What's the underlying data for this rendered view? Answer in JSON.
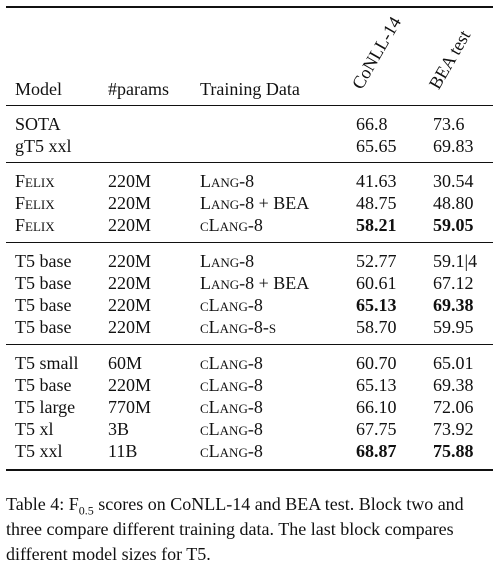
{
  "table": {
    "columns": {
      "model": "Model",
      "params": "#params",
      "training_data": "Training Data",
      "conll": "CoNLL-14",
      "bea": "BEA test"
    },
    "blocks": [
      [
        {
          "model": "SOTA",
          "params": "",
          "data": "",
          "conll": "66.8",
          "bea": "73.6"
        },
        {
          "model": "gT5 xxl",
          "params": "",
          "data": "",
          "conll": "65.65",
          "bea": "69.83"
        }
      ],
      [
        {
          "model": "Felix",
          "params": "220M",
          "data": "Lang-8",
          "conll": "41.63",
          "bea": "30.54"
        },
        {
          "model": "Felix",
          "params": "220M",
          "data": "Lang-8 + BEA",
          "conll": "48.75",
          "bea": "48.80"
        },
        {
          "model": "Felix",
          "params": "220M",
          "data": "cLang-8",
          "conll": "58.21",
          "bea": "59.05"
        }
      ],
      [
        {
          "model": "T5 base",
          "params": "220M",
          "data": "Lang-8",
          "conll": "52.77",
          "bea": "59.1|4"
        },
        {
          "model": "T5 base",
          "params": "220M",
          "data": "Lang-8 + BEA",
          "conll": "60.61",
          "bea": "67.12"
        },
        {
          "model": "T5 base",
          "params": "220M",
          "data": "cLang-8",
          "conll": "65.13",
          "bea": "69.38"
        },
        {
          "model": "T5 base",
          "params": "220M",
          "data": "cLang-8-s",
          "conll": "58.70",
          "bea": "59.95"
        }
      ],
      [
        {
          "model": "T5 small",
          "params": "60M",
          "data": "cLang-8",
          "conll": "60.70",
          "bea": "65.01"
        },
        {
          "model": "T5 base",
          "params": "220M",
          "data": "cLang-8",
          "conll": "65.13",
          "bea": "69.38"
        },
        {
          "model": "T5 large",
          "params": "770M",
          "data": "cLang-8",
          "conll": "66.10",
          "bea": "72.06"
        },
        {
          "model": "T5 xl",
          "params": "3B",
          "data": "cLang-8",
          "conll": "67.75",
          "bea": "73.92"
        },
        {
          "model": "T5 xxl",
          "params": "11B",
          "data": "cLang-8",
          "conll": "68.87",
          "bea": "75.88"
        }
      ]
    ]
  },
  "caption": {
    "prefix": "Table 4: F",
    "sub": "0.5",
    "text": " scores on CoNLL-14 and BEA test. Block two and three compare different training data. The last block compares different model sizes for T5."
  }
}
